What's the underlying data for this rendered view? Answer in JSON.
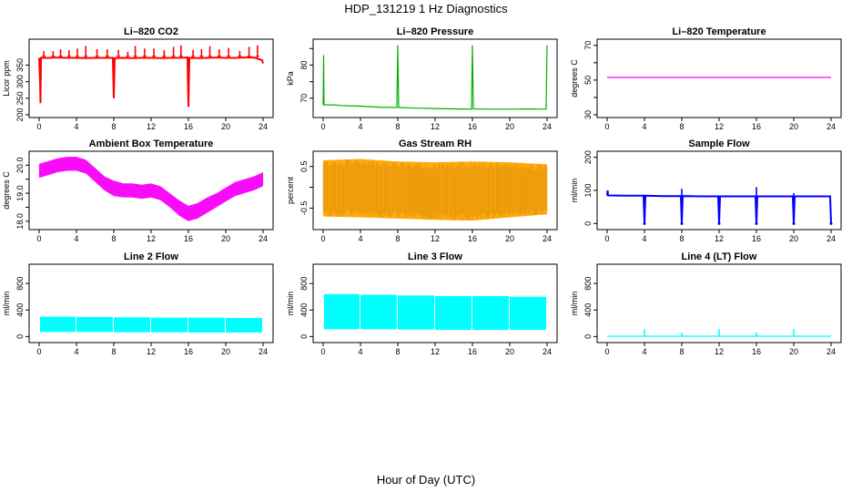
{
  "figure": {
    "title": "HDP_131219  1 Hz Diagnostics",
    "xlabel": "Hour of Day (UTC)"
  },
  "chart_data": [
    {
      "id": "co2",
      "type": "line",
      "title": "Li–820 CO2",
      "ylabel": "Licor ppm",
      "color": "#ff0000",
      "xlim": [
        0,
        24
      ],
      "ylim": [
        200,
        420
      ],
      "x_ticks": [
        0,
        4,
        8,
        12,
        16,
        20,
        24
      ],
      "y_ticks": [
        200,
        250,
        300,
        350
      ],
      "y_tick_labels": [
        "200",
        "250",
        "300",
        "350"
      ],
      "series": [
        {
          "x": [
            0,
            0.1,
            0.15,
            0.2,
            0.3,
            1,
            2,
            3,
            4,
            5,
            6,
            7,
            7.9,
            8,
            8.1,
            9,
            10,
            11,
            12,
            13,
            14,
            15,
            15.9,
            16,
            16.1,
            17,
            18,
            19,
            20,
            21,
            22,
            23,
            23.9,
            24
          ],
          "y": [
            372,
            300,
            235,
            372,
            372,
            372,
            373,
            372,
            372,
            371,
            372,
            372,
            372,
            250,
            371,
            372,
            371,
            372,
            372,
            371,
            372,
            372,
            373,
            224,
            372,
            371,
            372,
            373,
            372,
            372,
            373,
            373,
            365,
            355
          ]
        }
      ],
      "spikes": {
        "x": [
          0.5,
          1.5,
          2.3,
          3.2,
          4.1,
          5.0,
          6.2,
          7.3,
          8.5,
          9.5,
          10.3,
          11.3,
          12.3,
          13.4,
          14.4,
          15.2,
          16.5,
          17.4,
          18.3,
          19.3,
          20.3,
          21.5,
          22.5,
          23.4
        ],
        "peak": [
          392,
          392,
          398,
          395,
          400,
          408,
          398,
          398,
          396,
          390,
          408,
          400,
          400,
          395,
          405,
          410,
          396,
          398,
          407,
          398,
          402,
          392,
          405,
          410
        ],
        "base": 372
      }
    },
    {
      "id": "pressure",
      "type": "line",
      "title": "Li–820 Pressure",
      "ylabel": "kPa",
      "color": "#00b000",
      "xlim": [
        0,
        24
      ],
      "ylim": [
        65,
        87
      ],
      "x_ticks": [
        0,
        4,
        8,
        12,
        16,
        20,
        24
      ],
      "y_ticks": [
        70,
        75,
        80,
        85
      ],
      "y_tick_labels": [
        "70",
        "",
        "80",
        ""
      ],
      "series": [
        {
          "x": [
            0,
            0.05,
            0.1,
            1,
            2,
            4,
            6,
            7.9,
            8,
            8.1,
            10,
            12,
            14,
            15.9,
            16,
            16.1,
            18,
            20,
            22,
            23.9,
            24
          ],
          "y": [
            68,
            83,
            68,
            68,
            67.8,
            67.6,
            67.3,
            67.2,
            86,
            67.2,
            67.0,
            66.9,
            66.8,
            66.7,
            86,
            66.8,
            66.7,
            66.7,
            66.8,
            66.7,
            86
          ]
        }
      ]
    },
    {
      "id": "li820temp",
      "type": "line",
      "title": "Li–820 Temperature",
      "ylabel": "degrees C",
      "color": "#ff00ff",
      "xlim": [
        0,
        24
      ],
      "ylim": [
        30,
        72
      ],
      "x_ticks": [
        0,
        4,
        8,
        12,
        16,
        20,
        24
      ],
      "y_ticks": [
        30,
        40,
        50,
        60,
        70
      ],
      "y_tick_labels": [
        "30",
        "",
        "50",
        "",
        "70"
      ],
      "series": [
        {
          "x": [
            0,
            24
          ],
          "y": [
            51.5,
            51.5
          ]
        }
      ]
    },
    {
      "id": "boxtemp",
      "type": "band",
      "title": "Ambient Box Temperature",
      "ylabel": "degrees C",
      "color": "#ff00ff",
      "xlim": [
        0,
        24
      ],
      "ylim": [
        17.8,
        20.4
      ],
      "x_ticks": [
        0,
        4,
        8,
        12,
        16,
        20,
        24
      ],
      "y_ticks": [
        18.0,
        18.5,
        19.0,
        19.5,
        20.0
      ],
      "y_tick_labels": [
        "18.0",
        "",
        "19.0",
        "",
        "20.0"
      ],
      "band": {
        "x": [
          0,
          1,
          2,
          3,
          4,
          5,
          6,
          7,
          8,
          9,
          10,
          11,
          12,
          13,
          14,
          15,
          16,
          17,
          18,
          19,
          20,
          21,
          22,
          23,
          24
        ],
        "low": [
          19.55,
          19.65,
          19.75,
          19.8,
          19.8,
          19.7,
          19.4,
          19.1,
          18.9,
          18.85,
          18.85,
          18.8,
          18.85,
          18.75,
          18.5,
          18.2,
          18.0,
          18.1,
          18.3,
          18.5,
          18.7,
          18.9,
          19.0,
          19.1,
          19.25
        ],
        "high": [
          20.05,
          20.15,
          20.25,
          20.3,
          20.3,
          20.2,
          19.9,
          19.6,
          19.45,
          19.35,
          19.35,
          19.3,
          19.35,
          19.25,
          19.0,
          18.75,
          18.55,
          18.65,
          18.85,
          19.0,
          19.2,
          19.4,
          19.5,
          19.6,
          19.75
        ]
      }
    },
    {
      "id": "rh",
      "type": "band",
      "title": "Gas Stream RH",
      "ylabel": "percent",
      "color": "#ffa500",
      "xlim": [
        0,
        24
      ],
      "ylim": [
        -0.95,
        0.8
      ],
      "x_ticks": [
        0,
        4,
        8,
        12,
        16,
        20,
        24
      ],
      "y_ticks": [
        -0.5,
        0.0,
        0.5
      ],
      "y_tick_labels": [
        "-0.5",
        "",
        "0.5"
      ],
      "band": {
        "x": [
          0,
          4,
          8,
          12,
          16,
          20,
          24
        ],
        "low": [
          -0.7,
          -0.72,
          -0.75,
          -0.78,
          -0.8,
          -0.72,
          -0.65
        ],
        "high": [
          0.65,
          0.68,
          0.62,
          0.6,
          0.62,
          0.6,
          0.55
        ]
      }
    },
    {
      "id": "sampleflow",
      "type": "line",
      "title": "Sample Flow",
      "ylabel": "ml/min",
      "color": "#0000ff",
      "xlim": [
        0,
        24
      ],
      "ylim": [
        -10,
        210
      ],
      "x_ticks": [
        0,
        4,
        8,
        12,
        16,
        20,
        24
      ],
      "y_ticks": [
        0,
        100,
        200
      ],
      "y_tick_labels": [
        "0",
        "100",
        "200"
      ],
      "series": [
        {
          "x": [
            0,
            0.05,
            0.1,
            2,
            3.9,
            4,
            4.1,
            6,
            7.9,
            8,
            8.1,
            10,
            11.9,
            12,
            12.1,
            14,
            15.9,
            16,
            16.1,
            18,
            19.9,
            20,
            20.1,
            22,
            23.9,
            24
          ],
          "y": [
            85,
            100,
            85,
            84,
            84,
            0,
            84,
            83,
            83,
            0,
            83,
            82,
            82,
            0,
            82,
            82,
            82,
            0,
            82,
            82,
            82,
            0,
            82,
            82,
            82,
            0
          ]
        }
      ],
      "spikes": {
        "x": [
          8.0,
          16.0,
          20.0
        ],
        "peak": [
          105,
          110,
          92
        ],
        "base": 83
      }
    },
    {
      "id": "line2flow",
      "type": "block",
      "title": "Line 2 Flow",
      "ylabel": "ml/min",
      "color": "#00ffff",
      "xlim": [
        0,
        24
      ],
      "ylim": [
        -50,
        1050
      ],
      "x_ticks": [
        0,
        4,
        8,
        12,
        16,
        20,
        24
      ],
      "y_ticks": [
        0,
        400,
        800
      ],
      "y_tick_labels": [
        "0",
        "400",
        "800"
      ],
      "blocks": {
        "x0": [
          0.1,
          4.0,
          8.0,
          12.0,
          16.0,
          20.0
        ],
        "x1": [
          3.9,
          7.9,
          11.9,
          15.9,
          19.9,
          23.9
        ],
        "low": [
          70,
          70,
          65,
          65,
          60,
          60
        ],
        "high": [
          300,
          295,
          290,
          285,
          285,
          280
        ]
      }
    },
    {
      "id": "line3flow",
      "type": "block",
      "title": "Line 3 Flow",
      "ylabel": "ml/min",
      "color": "#00ffff",
      "xlim": [
        0,
        24
      ],
      "ylim": [
        -50,
        1050
      ],
      "x_ticks": [
        0,
        4,
        8,
        12,
        16,
        20,
        24
      ],
      "y_ticks": [
        0,
        400,
        800
      ],
      "y_tick_labels": [
        "0",
        "400",
        "800"
      ],
      "blocks": {
        "x0": [
          0.1,
          4.0,
          8.0,
          12.0,
          16.0,
          20.0
        ],
        "x1": [
          3.9,
          7.9,
          11.9,
          15.9,
          19.9,
          23.9
        ],
        "low": [
          110,
          110,
          105,
          100,
          100,
          100
        ],
        "high": [
          640,
          630,
          620,
          610,
          610,
          600
        ]
      }
    },
    {
      "id": "line4flow",
      "type": "line",
      "title": "Line 4 (LT) Flow",
      "ylabel": "ml/min",
      "color": "#00ffff",
      "xlim": [
        0,
        24
      ],
      "ylim": [
        -50,
        1050
      ],
      "x_ticks": [
        0,
        4,
        8,
        12,
        16,
        20,
        24
      ],
      "y_ticks": [
        0,
        400,
        800
      ],
      "y_tick_labels": [
        "0",
        "400",
        "800"
      ],
      "series": [
        {
          "x": [
            0,
            24
          ],
          "y": [
            5,
            5
          ]
        }
      ],
      "spikes": {
        "x": [
          4.0,
          8.0,
          12.0,
          16.0,
          20.0
        ],
        "peak": [
          110,
          60,
          110,
          60,
          110
        ],
        "base": 5
      }
    }
  ]
}
